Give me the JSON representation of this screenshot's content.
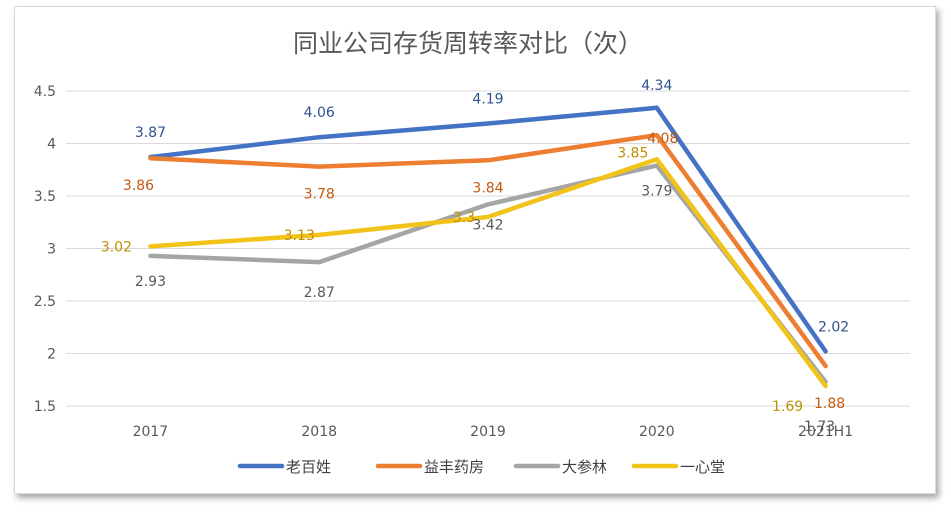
{
  "chart_data": {
    "type": "line",
    "title": "同业公司存货周转率对比（次）",
    "categories": [
      "2017",
      "2018",
      "2019",
      "2020",
      "2021H1"
    ],
    "ylim": [
      1.5,
      4.5
    ],
    "yticks": [
      "1.5",
      "2",
      "2.5",
      "3",
      "3.5",
      "4",
      "4.5"
    ],
    "grid": true,
    "legend": "bottom",
    "series": [
      {
        "name": "老百姓",
        "color": "#4472C4",
        "label_color": "#2F528F",
        "values": [
          3.87,
          4.06,
          4.19,
          4.34,
          2.02
        ],
        "labels": [
          "3.87",
          "4.06",
          "4.19",
          "4.34",
          "2.02"
        ]
      },
      {
        "name": "益丰药房",
        "color": "#ED7D31",
        "label_color": "#C55A11",
        "values": [
          3.86,
          3.78,
          3.84,
          4.08,
          1.88
        ],
        "labels": [
          "3.86",
          "3.78",
          "3.84",
          "4.08",
          "1.88"
        ]
      },
      {
        "name": "大参林",
        "color": "#A5A5A5",
        "label_color": "#595959",
        "values": [
          2.93,
          2.87,
          3.42,
          3.79,
          1.73
        ],
        "labels": [
          "2.93",
          "2.87",
          "3.42",
          "3.79",
          "1.73"
        ]
      },
      {
        "name": "一心堂",
        "color": "#F2C318",
        "label_color": "#BF9000",
        "values": [
          3.02,
          3.13,
          3.3,
          3.85,
          1.69
        ],
        "labels": [
          "3.02",
          "3.13",
          "3.3",
          "3.85",
          "1.69"
        ]
      }
    ]
  }
}
